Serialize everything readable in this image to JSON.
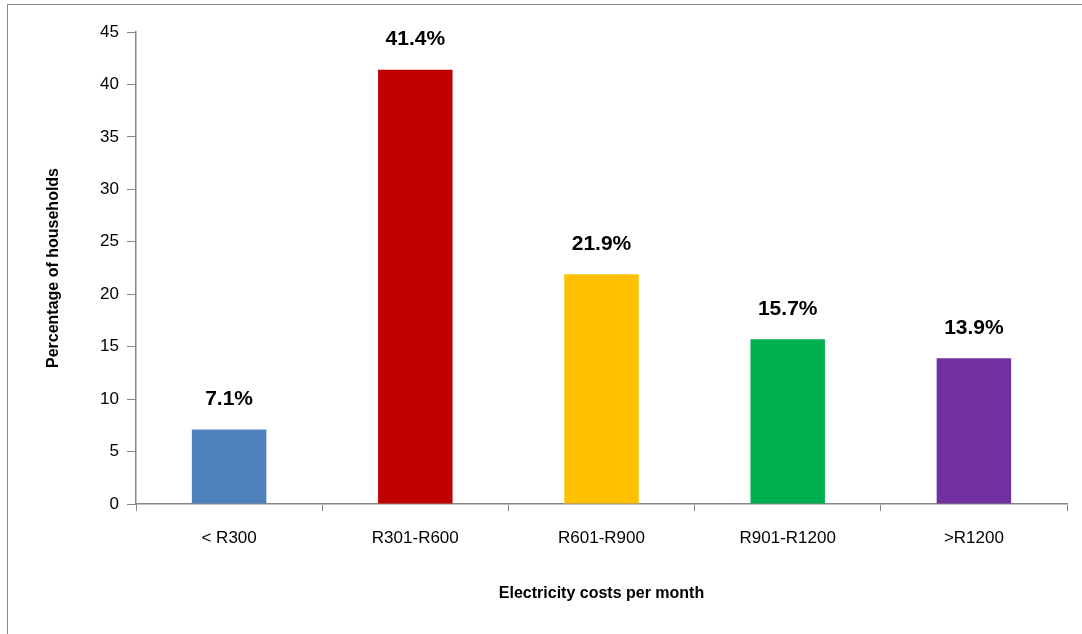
{
  "chart_data": {
    "type": "bar",
    "xlabel": "Electricity costs per month",
    "ylabel": "Percentage of households",
    "categories": [
      "< R300",
      "R301-R600",
      "R601-R900",
      "R901-R1200",
      ">R1200"
    ],
    "values": [
      7.1,
      41.4,
      21.9,
      15.7,
      13.9
    ],
    "colors": [
      "#4f81bd",
      "#c00000",
      "#ffc000",
      "#00b050",
      "#7030a0"
    ],
    "value_labels": [
      "7.1%",
      "41.4%",
      "21.9%",
      "15.7%",
      "13.9%"
    ],
    "ylim": [
      0,
      45
    ],
    "yticks": [
      0,
      5,
      10,
      15,
      20,
      25,
      30,
      35,
      40,
      45
    ],
    "grid": false,
    "legend": false
  }
}
